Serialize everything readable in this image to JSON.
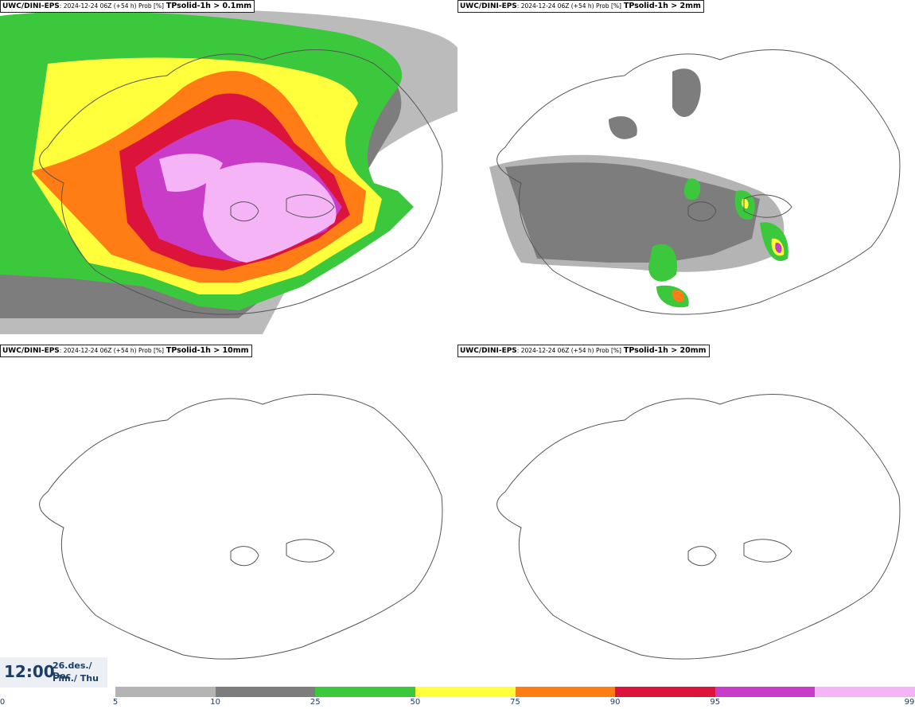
{
  "panels": [
    {
      "source": "UWC/DINI-EPS",
      "meta": ": 2024-12-24 06Z (+54 h) Prob [%]",
      "variable": "TPsolid-1h > 0.1mm"
    },
    {
      "source": "UWC/DINI-EPS",
      "meta": ": 2024-12-24 06Z (+54 h) Prob [%]",
      "variable": "TPsolid-1h > 2mm"
    },
    {
      "source": "UWC/DINI-EPS",
      "meta": ": 2024-12-24 06Z (+54 h) Prob [%]",
      "variable": "TPsolid-1h > 10mm"
    },
    {
      "source": "UWC/DINI-EPS",
      "meta": ": 2024-12-24 06Z (+54 h) Prob [%]",
      "variable": "TPsolid-1h > 20mm"
    }
  ],
  "valid_time": {
    "time": "12:00",
    "date_line": "26.des./ Dec",
    "day_line": "Fim./ Thu"
  },
  "colorbar": {
    "ticks": [
      "0",
      "5",
      "10",
      "25",
      "50",
      "75",
      "90",
      "95",
      "99"
    ],
    "colors": [
      "#b4b4b4",
      "#7d7d7d",
      "#3cc83c",
      "#ffff3c",
      "#ff7d14",
      "#dc143c",
      "#c83cc8",
      "#f5b4f5"
    ]
  },
  "legend_colors": {
    "outline": "#555555",
    "sea": "#ffffff"
  }
}
